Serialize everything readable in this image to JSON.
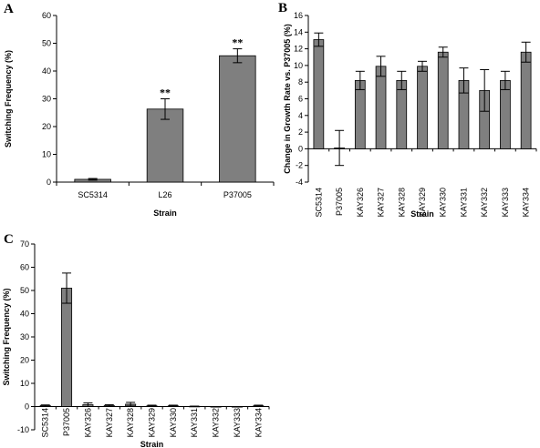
{
  "chart_data": [
    {
      "panel": "A",
      "type": "bar",
      "categories": [
        "SC5314",
        "L26",
        "P37005"
      ],
      "values": [
        1.0,
        26.3,
        45.5
      ],
      "errors": [
        0.3,
        3.7,
        2.5
      ],
      "annotations": [
        "",
        "**",
        "**"
      ],
      "xlabel": "Strain",
      "ylabel": "Switching Frequency (%)",
      "ylim": [
        0,
        60
      ],
      "yticks": [
        0,
        10,
        20,
        30,
        40,
        50,
        60
      ],
      "grid": false,
      "legend": "none"
    },
    {
      "panel": "B",
      "type": "bar",
      "categories": [
        "SC5314",
        "P37005",
        "KAY326",
        "KAY327",
        "KAY328",
        "KAY329",
        "KAY330",
        "KAY331",
        "KAY332",
        "KAY333",
        "KAY334"
      ],
      "values": [
        13.1,
        0.1,
        8.2,
        9.9,
        8.2,
        9.9,
        11.6,
        8.2,
        7.0,
        8.2,
        11.6
      ],
      "errors": [
        0.8,
        2.1,
        1.1,
        1.2,
        1.1,
        0.6,
        0.6,
        1.5,
        2.5,
        1.1,
        1.2
      ],
      "xlabel": "Strain",
      "ylabel": "Change in Growth Rate vs. P37005 (%)",
      "ylim": [
        -4,
        16
      ],
      "yticks": [
        -4,
        -2,
        0,
        2,
        4,
        6,
        8,
        10,
        12,
        14,
        16
      ],
      "grid": false,
      "legend": "none"
    },
    {
      "panel": "C",
      "type": "bar",
      "categories": [
        "SC5314",
        "P37005",
        "KAY326",
        "KAY327",
        "KAY328",
        "KAY329",
        "KAY330",
        "KAY331",
        "KAY332",
        "KAY333",
        "KAY334"
      ],
      "values": [
        0.4,
        51.0,
        0.8,
        0.4,
        1.0,
        0.3,
        0.3,
        0.1,
        0.0,
        0.0,
        0.3
      ],
      "errors": [
        0.3,
        6.5,
        0.8,
        0.4,
        0.8,
        0.3,
        0.3,
        0.1,
        0.0,
        0.0,
        0.3
      ],
      "xlabel": "Strain",
      "ylabel": "Switching Frequency (%)",
      "ylim": [
        -10,
        70
      ],
      "yticks": [
        -10,
        0,
        10,
        20,
        30,
        40,
        50,
        60,
        70
      ],
      "grid": false,
      "legend": "none"
    }
  ]
}
